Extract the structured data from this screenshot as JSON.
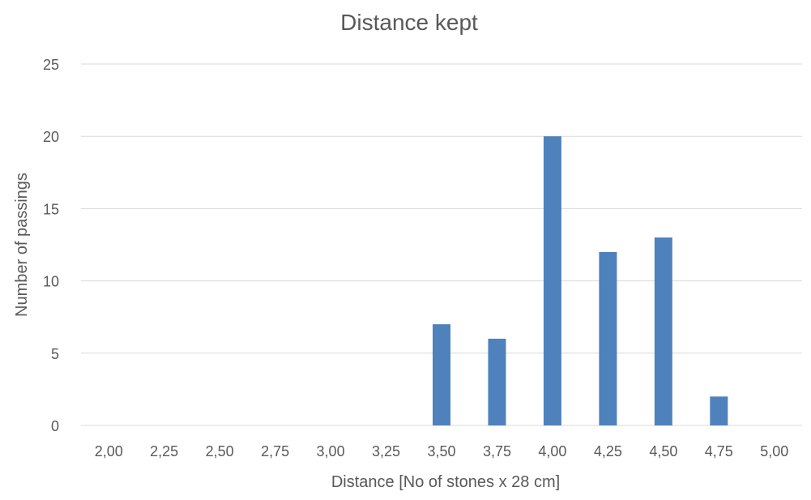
{
  "chart_data": {
    "type": "bar",
    "title": "Distance kept",
    "xlabel": "Distance [No of stones x 28 cm]",
    "ylabel": "Number of passings",
    "categories": [
      "2,00",
      "2,25",
      "2,50",
      "2,75",
      "3,00",
      "3,25",
      "3,50",
      "3,75",
      "4,00",
      "4,25",
      "4,50",
      "4,75",
      "5,00"
    ],
    "values": [
      0,
      0,
      0,
      0,
      0,
      0,
      7,
      6,
      20,
      12,
      13,
      2,
      0
    ],
    "ylim": [
      0,
      25
    ],
    "yticks": [
      "0",
      "5",
      "10",
      "15",
      "20",
      "25"
    ],
    "grid": true,
    "colors": {
      "bar": "#4F81BD",
      "grid": "#D9D9D9",
      "text": "#595959"
    }
  }
}
